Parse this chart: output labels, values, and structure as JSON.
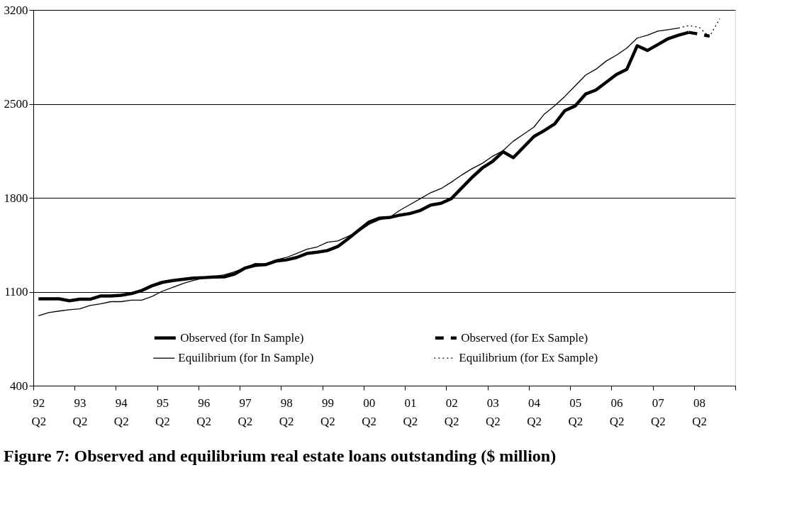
{
  "chart_data": {
    "type": "line",
    "title": "Figure 7:  Observed and equilibrium real estate loans outstanding ($ million)",
    "categories": [
      "92 Q2",
      null,
      null,
      null,
      "93 Q2",
      null,
      null,
      null,
      "94 Q2",
      null,
      null,
      null,
      "95 Q2",
      null,
      null,
      null,
      "96 Q2",
      null,
      null,
      null,
      "97 Q2",
      null,
      null,
      null,
      "98 Q2",
      null,
      null,
      null,
      "99 Q2",
      null,
      null,
      null,
      "00 Q2",
      null,
      null,
      null,
      "01 Q2",
      null,
      null,
      null,
      "02 Q2",
      null,
      null,
      null,
      "03 Q2",
      null,
      null,
      null,
      "04 Q2",
      null,
      null,
      null,
      "05 Q2",
      null,
      null,
      null,
      "06 Q2",
      null,
      null,
      null,
      "07 Q2",
      null,
      null,
      null,
      "08 Q2",
      null,
      null,
      null
    ],
    "series": [
      {
        "name": "Observed (for In Sample)",
        "color": "#000000",
        "line_style": "solid",
        "values": [
          1047,
          1047,
          1047,
          1033,
          1044,
          1044,
          1068,
          1068,
          1074,
          1086,
          1109,
          1144,
          1170,
          1183,
          1193,
          1202,
          1205,
          1209,
          1211,
          1232,
          1276,
          1297,
          1302,
          1328,
          1337,
          1355,
          1385,
          1395,
          1407,
          1437,
          1495,
          1557,
          1618,
          1648,
          1653,
          1671,
          1683,
          1706,
          1746,
          1759,
          1794,
          1873,
          1952,
          2022,
          2072,
          2143,
          2099,
          2178,
          2257,
          2301,
          2350,
          2450,
          2485,
          2573,
          2603,
          2661,
          2719,
          2758,
          2933,
          2898,
          2942,
          2986,
          3012,
          3033,
          null,
          null,
          null,
          null
        ]
      },
      {
        "name": "Equilibrium (for In Sample)",
        "color": "#000000",
        "line_style": "solid",
        "values": [
          921,
          945,
          956,
          966,
          973,
          998,
          1009,
          1026,
          1026,
          1037,
          1037,
          1065,
          1104,
          1132,
          1161,
          1184,
          1202,
          1214,
          1226,
          1249,
          1279,
          1311,
          1307,
          1337,
          1355,
          1385,
          1416,
          1434,
          1469,
          1478,
          1513,
          1548,
          1601,
          1636,
          1653,
          1706,
          1750,
          1794,
          1838,
          1869,
          1917,
          1970,
          2017,
          2057,
          2110,
          2151,
          2222,
          2274,
          2327,
          2424,
          2485,
          2556,
          2635,
          2714,
          2758,
          2819,
          2863,
          2916,
          2990,
          3012,
          3042,
          3053,
          3065,
          null,
          null,
          null,
          null,
          null
        ]
      },
      {
        "name": "Observed (for Ex Sample)",
        "color": "#000000",
        "line_style": "dashed",
        "values": [
          null,
          null,
          null,
          null,
          null,
          null,
          null,
          null,
          null,
          null,
          null,
          null,
          null,
          null,
          null,
          null,
          null,
          null,
          null,
          null,
          null,
          null,
          null,
          null,
          null,
          null,
          null,
          null,
          null,
          null,
          null,
          null,
          null,
          null,
          null,
          null,
          null,
          null,
          null,
          null,
          null,
          null,
          null,
          null,
          null,
          null,
          null,
          null,
          null,
          null,
          null,
          null,
          null,
          null,
          null,
          null,
          null,
          null,
          null,
          null,
          null,
          null,
          null,
          3033,
          3020,
          3005,
          null,
          null
        ]
      },
      {
        "name": "Equilibrium (for Ex Sample)",
        "color": "#000000",
        "line_style": "dotted",
        "values": [
          null,
          null,
          null,
          null,
          null,
          null,
          null,
          null,
          null,
          null,
          null,
          null,
          null,
          null,
          null,
          null,
          null,
          null,
          null,
          null,
          null,
          null,
          null,
          null,
          null,
          null,
          null,
          null,
          null,
          null,
          null,
          null,
          null,
          null,
          null,
          null,
          null,
          null,
          null,
          null,
          null,
          null,
          null,
          null,
          null,
          null,
          null,
          null,
          null,
          null,
          null,
          null,
          null,
          null,
          null,
          null,
          null,
          null,
          null,
          null,
          null,
          null,
          3065,
          3083,
          3071,
          3000,
          3135,
          null
        ]
      }
    ],
    "ylim": [
      400,
      3200
    ],
    "yticks": [
      400,
      {
        "value": 1100,
        "label": "1100"
      },
      {
        "value": 1800,
        "label": "1800"
      },
      {
        "value": 2500,
        "label": "2500"
      },
      {
        "value": 3200,
        "label": "3200"
      }
    ],
    "grid": "y",
    "legend": "bottom right",
    "marker": "none"
  }
}
